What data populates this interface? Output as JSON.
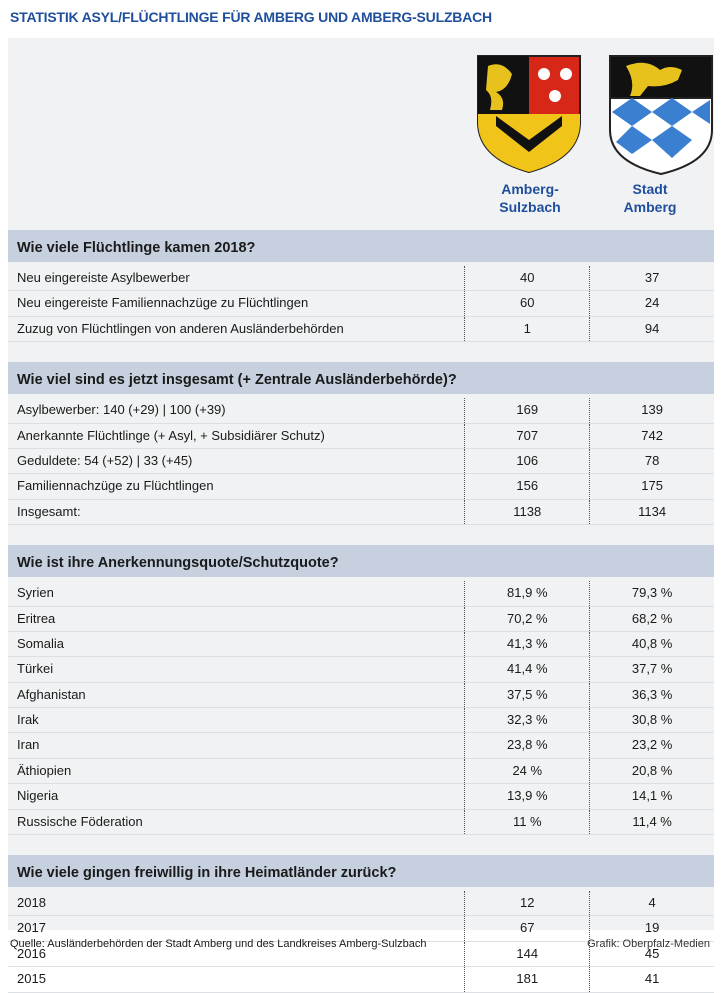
{
  "title": "STATISTIK ASYL/FLÜCHTLINGE FÜR AMBERG UND AMBERG-SULZBACH",
  "columns": [
    "Amberg-Sulzbach",
    "Stadt Amberg"
  ],
  "sections": [
    {
      "heading": "Wie viele Flüchtlinge kamen 2018?",
      "rows": [
        [
          "Neu eingereiste Asylbewerber",
          "40",
          "37"
        ],
        [
          "Neu eingereiste Familiennachzüge zu Flüchtlingen",
          "60",
          "24"
        ],
        [
          "Zuzug von Flüchtlingen von anderen Ausländerbehörden",
          "1",
          "94"
        ]
      ]
    },
    {
      "heading": "Wie viel sind es jetzt insgesamt (+ Zentrale Ausländerbehörde)?",
      "rows": [
        [
          "Asylbewerber:  140 (+29) | 100 (+39)",
          "169",
          "139"
        ],
        [
          "Anerkannte Flüchtlinge (+ Asyl, + Subsidiärer Schutz)",
          "707",
          "742"
        ],
        [
          "Geduldete: 54 (+52) | 33 (+45)",
          "106",
          "78"
        ],
        [
          "Familiennachzüge zu Flüchtlingen",
          "156",
          "175"
        ],
        [
          "Insgesamt:",
          "1138",
          "1134"
        ]
      ]
    },
    {
      "heading": "Wie ist ihre Anerkennungsquote/Schutzquote?",
      "rows": [
        [
          "Syrien",
          "81,9 %",
          "79,3 %"
        ],
        [
          "Eritrea",
          "70,2 %",
          "68,2 %"
        ],
        [
          "Somalia",
          "41,3 %",
          "40,8 %"
        ],
        [
          "Türkei",
          "41,4 %",
          "37,7 %"
        ],
        [
          "Afghanistan",
          "37,5 %",
          "36,3 %"
        ],
        [
          "Irak",
          "32,3 %",
          "30,8 %"
        ],
        [
          "Iran",
          "23,8 %",
          "23,2 %"
        ],
        [
          "Äthiopien",
          "24 %",
          "20,8 %"
        ],
        [
          "Nigeria",
          "13,9 %",
          "14,1 %"
        ],
        [
          "Russische Föderation",
          "11 %",
          "11,4 %"
        ]
      ]
    },
    {
      "heading": "Wie viele gingen freiwillig in ihre Heimatländer zurück?",
      "rows": [
        [
          "2018",
          "12",
          "4"
        ],
        [
          "2017",
          "67",
          "19"
        ],
        [
          "2016",
          "144",
          "45"
        ],
        [
          "2015",
          "181",
          "41"
        ]
      ]
    }
  ],
  "source": "Quelle: Ausländerbehörden der Stadt Amberg und des Landkreises Amberg-Sulzbach",
  "credit": "Grafik: Oberpfalz-Medien"
}
